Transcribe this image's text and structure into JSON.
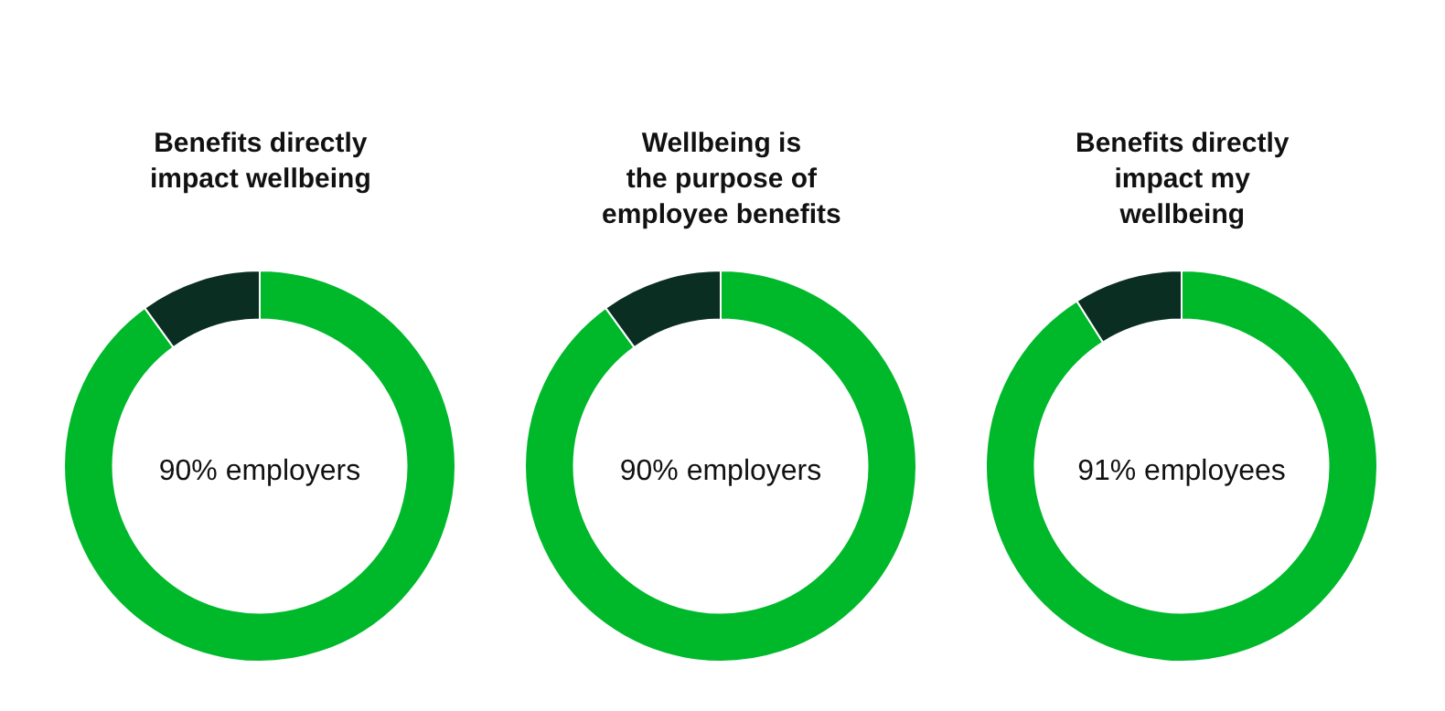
{
  "chart_data": [
    {
      "type": "donut",
      "title": "Benefits directly\nimpact wellbeing",
      "categories": [
        null,
        null
      ],
      "values": [
        90,
        10
      ],
      "colors": [
        "#00b92b",
        "#0b2e22"
      ],
      "annotations": [
        "90% employers"
      ],
      "legend": false
    },
    {
      "type": "donut",
      "title": "Wellbeing is\nthe purpose of\nemployee benefits",
      "categories": [
        null,
        null
      ],
      "values": [
        90,
        10
      ],
      "colors": [
        "#00b92b",
        "#0b2e22"
      ],
      "annotations": [
        "90% employers"
      ],
      "legend": false
    },
    {
      "type": "donut",
      "title": "Benefits directly\nimpact my\nwellbeing",
      "categories": [
        null,
        null
      ],
      "values": [
        91,
        9
      ],
      "colors": [
        "#00b92b",
        "#0b2e22"
      ],
      "annotations": [
        "91% employees"
      ],
      "legend": false
    }
  ]
}
